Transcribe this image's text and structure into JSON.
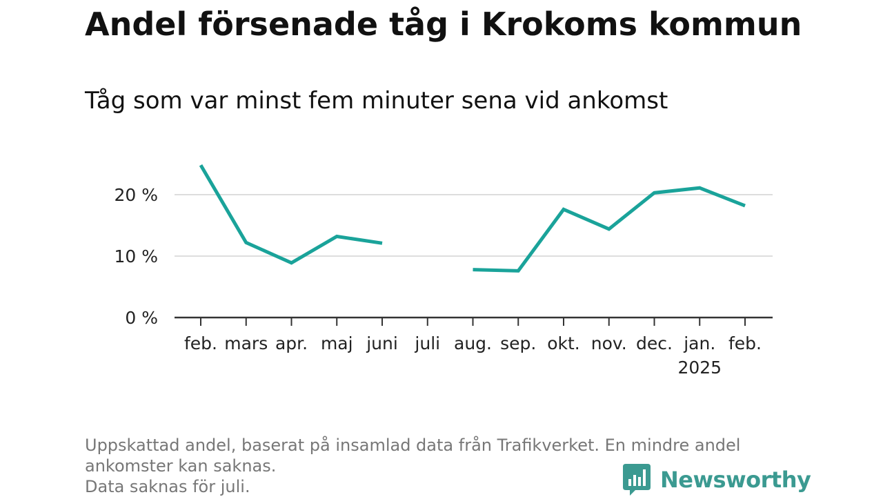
{
  "title": "Andel försenade tåg i Krokoms kommun",
  "subtitle": "Tåg som var minst fem minuter sena vid ankomst",
  "footnote": {
    "line1": "Uppskattad andel, baserat på insamlad data från Trafikverket. En mindre andel",
    "line2": "ankomster kan saknas.",
    "line3": "Data saknas för juli."
  },
  "brand": {
    "name": "Newsworthy",
    "icon": "bar-chart-speech-bubble-icon",
    "color": "#3b9a91"
  },
  "chart_data": {
    "type": "line",
    "categories": [
      "feb.",
      "mars",
      "apr.",
      "maj",
      "juni",
      "juli",
      "aug.",
      "sep.",
      "okt.",
      "nov.",
      "dec.",
      "jan.",
      "feb."
    ],
    "category_sublabels": [
      "",
      "",
      "",
      "",
      "",
      "",
      "",
      "",
      "",
      "",
      "",
      "2025",
      ""
    ],
    "series": [
      {
        "values": [
          24.8,
          12.2,
          8.9,
          13.2,
          12.1,
          null,
          7.8,
          7.6,
          17.6,
          14.4,
          20.3,
          21.1,
          18.2
        ],
        "color": "#1aa39a"
      }
    ],
    "yticks": [
      0,
      10,
      20
    ],
    "ytick_labels": [
      "0 %",
      "10 %",
      "20 %"
    ],
    "ylim": [
      0,
      25
    ],
    "grid": true,
    "gridline_color": "#dddddd",
    "axis_color": "#333333"
  }
}
